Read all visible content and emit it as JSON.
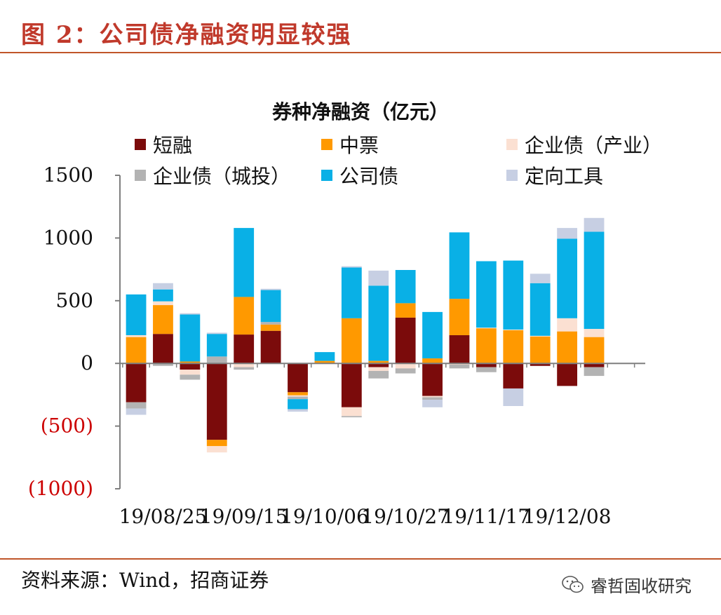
{
  "figure_title": "图 2：公司债净融资明显较强",
  "source_text": "资料来源：Wind，招商证券",
  "brand_text": "睿哲固收研究",
  "brand_icon": "wechat-icon",
  "colors": {
    "rule": "#c0562a",
    "negative_tick": "#cc0000",
    "axis": "#7f7f7f"
  },
  "chart_data": {
    "type": "bar",
    "stacked": true,
    "title": "券种净融资（亿元）",
    "xlabel": "",
    "ylabel": "",
    "ylim": [
      -1000,
      1500
    ],
    "yticks": [
      1500,
      1000,
      500,
      0,
      -500,
      -1000
    ],
    "ytick_labels": [
      "1500",
      "1000",
      "500",
      "0",
      "(500)",
      "(1000)"
    ],
    "categories": [
      "19/08/18",
      "19/08/25",
      "19/09/01",
      "19/09/08",
      "19/09/15",
      "19/09/22",
      "19/09/29",
      "19/10/06",
      "19/10/13",
      "19/10/20",
      "19/10/27",
      "19/11/03",
      "19/11/10",
      "19/11/17",
      "19/11/24",
      "19/12/01",
      "19/12/08",
      "19/12/15",
      "19/12/22"
    ],
    "xtick_labels": [
      "19/08/25",
      "19/09/15",
      "19/10/06",
      "19/10/27",
      "19/11/17",
      "19/12/08"
    ],
    "legend_position": "top",
    "series": [
      {
        "name": "短融",
        "color": "#7b0b0b",
        "values": [
          -310,
          235,
          -50,
          -610,
          230,
          260,
          -230,
          0,
          -350,
          -30,
          365,
          -260,
          225,
          -30,
          -200,
          -20,
          -180,
          -30,
          0
        ]
      },
      {
        "name": "中票",
        "color": "#ff9900",
        "values": [
          210,
          230,
          15,
          -50,
          300,
          50,
          -25,
          20,
          360,
          20,
          115,
          40,
          290,
          280,
          265,
          215,
          255,
          210,
          0
        ]
      },
      {
        "name": "企业债（产业）",
        "color": "#fbe0d2",
        "values": [
          15,
          30,
          -40,
          -50,
          -30,
          -5,
          -10,
          0,
          -70,
          -30,
          -40,
          -10,
          -10,
          5,
          5,
          5,
          105,
          65,
          0
        ]
      },
      {
        "name": "企业债（城投）",
        "color": "#b3b3b3",
        "values": [
          -50,
          -20,
          -40,
          55,
          -20,
          20,
          -20,
          0,
          -10,
          -60,
          -40,
          -20,
          -30,
          -40,
          0,
          0,
          0,
          -70,
          0
        ]
      },
      {
        "name": "公司债",
        "color": "#09b0e6",
        "values": [
          325,
          95,
          375,
          180,
          550,
          255,
          -80,
          70,
          405,
          600,
          265,
          370,
          530,
          530,
          550,
          420,
          635,
          775,
          0
        ]
      },
      {
        "name": "定向工具",
        "color": "#c7cfe3",
        "values": [
          -50,
          50,
          10,
          10,
          0,
          10,
          -20,
          0,
          10,
          120,
          0,
          -60,
          0,
          0,
          -140,
          75,
          85,
          110,
          0
        ]
      }
    ]
  }
}
